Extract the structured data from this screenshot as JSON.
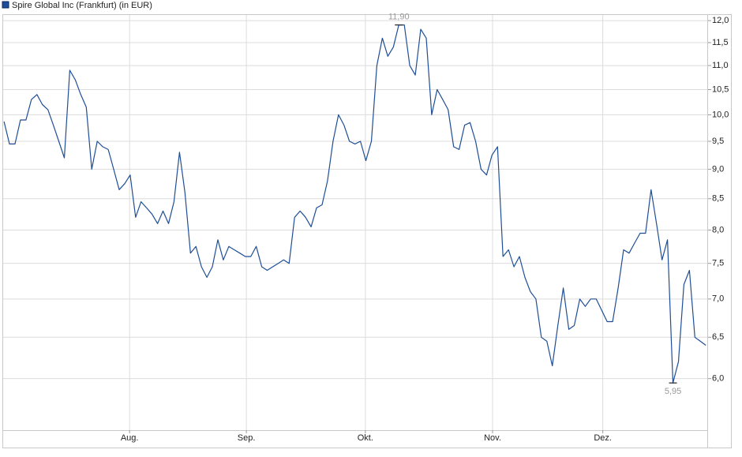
{
  "chart_data": {
    "type": "line",
    "series": [
      {
        "name": "Spire Global Inc (Frankfurt) (in EUR)",
        "color": "#1f4e96",
        "values": [
          9.87,
          9.45,
          9.45,
          9.9,
          9.9,
          10.3,
          10.4,
          10.2,
          10.1,
          9.8,
          9.5,
          9.2,
          10.9,
          10.7,
          10.4,
          10.15,
          9.0,
          9.5,
          9.4,
          9.35,
          9.0,
          8.65,
          8.75,
          8.9,
          8.2,
          8.45,
          8.35,
          8.25,
          8.1,
          8.3,
          8.1,
          8.45,
          9.3,
          8.6,
          7.65,
          7.75,
          7.45,
          7.3,
          7.45,
          7.85,
          7.55,
          7.75,
          7.7,
          7.65,
          7.6,
          7.6,
          7.75,
          7.45,
          7.4,
          7.45,
          7.5,
          7.55,
          7.5,
          8.2,
          8.3,
          8.2,
          8.05,
          8.35,
          8.4,
          8.8,
          9.5,
          10.0,
          9.8,
          9.5,
          9.45,
          9.5,
          9.15,
          9.5,
          11.0,
          11.6,
          11.2,
          11.4,
          11.9,
          11.9,
          11.0,
          10.8,
          11.8,
          11.6,
          10.0,
          10.5,
          10.3,
          10.1,
          9.4,
          9.35,
          9.8,
          9.85,
          9.5,
          9.0,
          8.9,
          9.25,
          9.4,
          7.6,
          7.7,
          7.45,
          7.6,
          7.3,
          7.1,
          7.0,
          6.5,
          6.45,
          6.15,
          6.65,
          7.15,
          6.6,
          6.65,
          7.0,
          6.9,
          7.0,
          7.0,
          6.85,
          6.7,
          6.7,
          7.15,
          7.7,
          7.65,
          7.8,
          7.95,
          7.95,
          8.65,
          8.1,
          7.55,
          7.85,
          5.95,
          6.2,
          7.2,
          7.4,
          6.5,
          6.45,
          6.4
        ]
      }
    ],
    "annotations": [
      {
        "value": 11.9,
        "label": "11,90",
        "position": "above"
      },
      {
        "value": 5.95,
        "label": "5,95",
        "position": "below"
      }
    ],
    "xlim": [
      -0.3,
      128.4
    ],
    "xticks": [
      {
        "value": 22.9,
        "label": "Aug."
      },
      {
        "value": 44.2,
        "label": "Sep."
      },
      {
        "value": 65.9,
        "label": "Okt."
      },
      {
        "value": 89.1,
        "label": "Nov."
      },
      {
        "value": 109.2,
        "label": "Dez."
      }
    ],
    "ylim": [
      5.43,
      12.15
    ],
    "log_scale": true,
    "grid": true,
    "legend": "top-left",
    "yticks": [
      {
        "value": 6,
        "label": "6,0"
      },
      {
        "value": 6.5,
        "label": "6,5"
      },
      {
        "value": 7,
        "label": "7,0"
      },
      {
        "value": 7.5,
        "label": "7,5"
      },
      {
        "value": 8,
        "label": "8,0"
      },
      {
        "value": 8.5,
        "label": "8,5"
      },
      {
        "value": 9,
        "label": "9,0"
      },
      {
        "value": 9.5,
        "label": "9,5"
      },
      {
        "value": 10,
        "label": "10,0"
      },
      {
        "value": 10.5,
        "label": "10,5"
      },
      {
        "value": 11,
        "label": "11,0"
      },
      {
        "value": 11.5,
        "label": "11,5"
      },
      {
        "value": 12,
        "label": "12,0"
      }
    ]
  }
}
